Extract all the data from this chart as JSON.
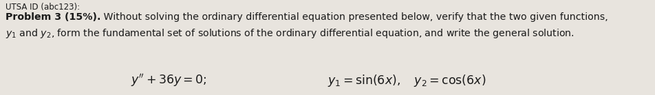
{
  "header": "UTSA ID (abc123):",
  "bold_part": "Problem 3 (15%).",
  "normal_part": " Without solving the ordinary differential equation presented below, verify that the two given functions,",
  "line2": "$y_1$ and $y_2$, form the fundamental set of solutions of the ordinary differential equation, and write the general solution.",
  "equation": "$y'' + 36y = 0;$",
  "solutions": "$y_1 = \\mathrm{sin}(6x), \\quad y_2 = \\mathrm{cos}(6x)$",
  "bg_color": "#e8e4de",
  "text_color": "#1a1a1a",
  "header_fontsize": 8.5,
  "body_fontsize": 10.2,
  "eq_fontsize": 12.5,
  "fig_width": 9.52,
  "fig_height": 1.39,
  "dpi": 100
}
